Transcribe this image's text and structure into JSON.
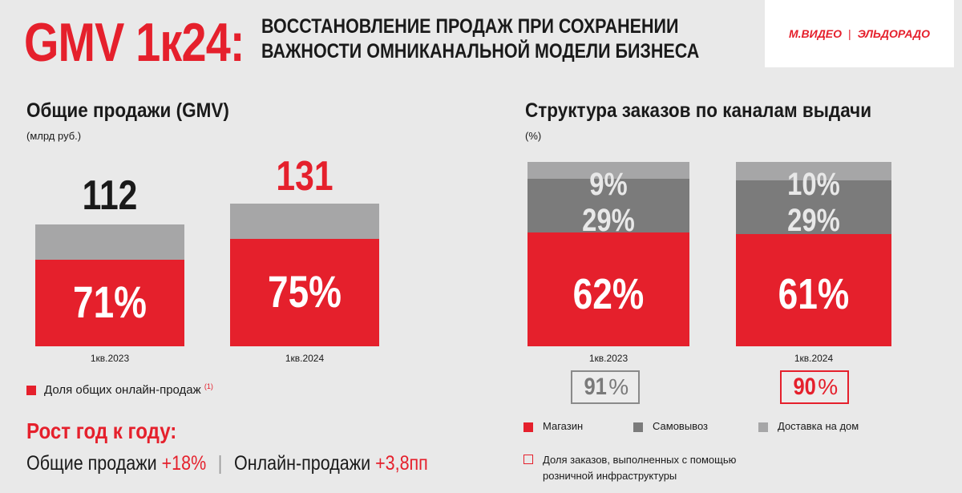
{
  "header": {
    "title": "GMV 1к24:",
    "subtitle_line1": "ВОССТАНОВЛЕНИЕ ПРОДАЖ ПРИ СОХРАНЕНИИ",
    "subtitle_line2": "ВАЖНОСТИ ОМНИКАНАЛЬНОЙ МОДЕЛИ БИЗНЕСА",
    "logo_left": "М.ВИДЕО",
    "logo_sep": "|",
    "logo_right": "ЭЛЬДОРАДО"
  },
  "left_section": {
    "title": "Общие продажи (GMV)",
    "unit": "(млрд руб.)",
    "legend_label": "Доля общих онлайн-продаж",
    "legend_note": "(1)",
    "growth_title": "Рост год к году:",
    "growth_total_label": "Общие продажи",
    "growth_total_value": "+18%",
    "growth_divider": "|",
    "growth_online_label": "Онлайн-продажи",
    "growth_online_value": "+3,8пп"
  },
  "right_section": {
    "title": "Структура заказов по каналам выдачи",
    "unit": "(%)",
    "legend": [
      {
        "label": "Магазин",
        "color": "#e5202c"
      },
      {
        "label": "Самовывоз",
        "color": "#7b7b7b"
      },
      {
        "label": "Доставка на дом",
        "color": "#a6a6a7"
      }
    ],
    "legend_outline_line1": "Доля заказов, выполненных с помощью",
    "legend_outline_line2": "розничной инфраструктуры",
    "retail_share": [
      {
        "period": "1кв.2023",
        "value": "91",
        "unit": "%",
        "color": "#7a7a7a"
      },
      {
        "period": "1кв.2024",
        "value": "90",
        "unit": "%",
        "color": "#e5202c"
      }
    ]
  },
  "chart_data": [
    {
      "type": "bar",
      "categories": [
        "1кв.2023",
        "1кв.2024"
      ],
      "totals": [
        "112",
        "131"
      ],
      "online_share_labels": [
        "71%",
        "75%"
      ],
      "values": [
        112,
        131
      ],
      "online_share": [
        71,
        75
      ],
      "colors": {
        "online": "#e5202c",
        "offline": "#a6a6a7"
      }
    },
    {
      "type": "bar",
      "stacked": true,
      "categories": [
        "1кв.2023",
        "1кв.2024"
      ],
      "series": [
        {
          "name": "Магазин",
          "values": [
            62,
            61
          ],
          "labels": [
            "62%",
            "61%"
          ],
          "color": "#e5202c"
        },
        {
          "name": "Самовывоз",
          "values": [
            29,
            29
          ],
          "labels": [
            "29%",
            "29%"
          ],
          "color": "#7b7b7b"
        },
        {
          "name": "Доставка на дом",
          "values": [
            9,
            10
          ],
          "labels": [
            "9%",
            "10%"
          ],
          "color": "#a6a6a7"
        }
      ]
    }
  ]
}
